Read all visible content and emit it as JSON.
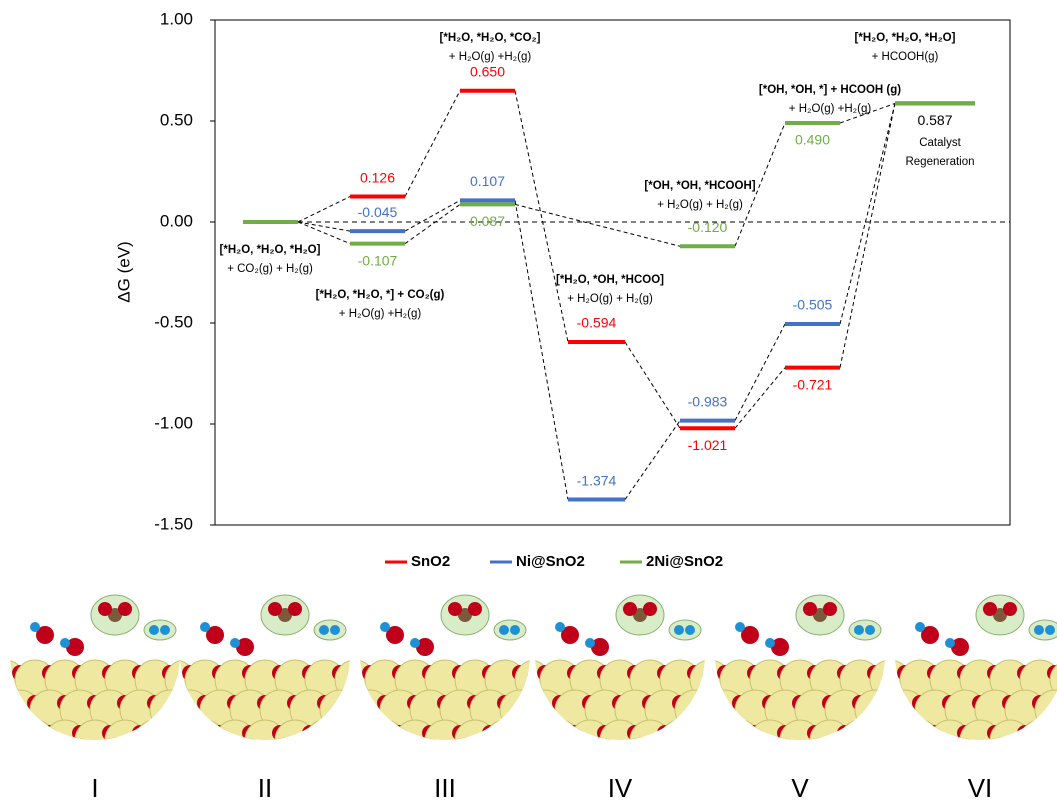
{
  "chart_data": {
    "type": "energy-profile",
    "y_label": "ΔG (eV)",
    "ylim": [
      -1.5,
      1.0
    ],
    "yticks": [
      {
        "value": 1.0,
        "label": "1.00"
      },
      {
        "value": 0.5,
        "label": "0.50"
      },
      {
        "value": 0,
        "label": "0.00"
      },
      {
        "value": -0.5,
        "label": "-0.50"
      },
      {
        "value": -1.0,
        "label": "-1.00"
      },
      {
        "value": -1.5,
        "label": "-1.50"
      }
    ],
    "categories": [
      null,
      null,
      null,
      null,
      null,
      null,
      null
    ],
    "series": [
      {
        "name": "SnO2",
        "color": "#ff0000",
        "values": [
          0,
          0.126,
          0.65,
          -0.594,
          -1.021,
          -0.721,
          0.587
        ],
        "value_labels": [
          null,
          "0.126",
          "0.650",
          "-0.594",
          "-1.021",
          "-0.721",
          null
        ]
      },
      {
        "name": "Ni@SnO2",
        "color": "#4472c4",
        "values": [
          0,
          -0.045,
          0.107,
          -1.374,
          -0.983,
          -0.505,
          0.587
        ],
        "value_labels": [
          null,
          "-0.045",
          "0.107",
          "-1.374",
          "-0.983",
          "-0.505",
          null
        ]
      },
      {
        "name": "2Ni@SnO2",
        "color": "#70ad47",
        "values": [
          0,
          -0.107,
          0.087,
          null,
          -0.12,
          0.49,
          0.587
        ],
        "value_labels": [
          null,
          "-0.107",
          "0.087",
          null,
          "-0.120",
          "0.490",
          "0.587"
        ]
      }
    ],
    "annotations": [
      [
        "[*H₂O, *H₂O, *H₂O]",
        "+ CO₂(g) + H₂(g)"
      ],
      [
        "[*H₂O, *H₂O, *] + CO₂(g)",
        "+ H₂O(g) +H₂(g)"
      ],
      [
        "[*H₂O, *H₂O, *CO₂]",
        "+ H₂O(g)  +H₂(g)"
      ],
      [
        "[*H₂O, *OH, *HCOO]",
        "+ H₂O(g) + H₂(g)"
      ],
      [
        "[*OH, *OH, *HCOOH]",
        "+ H₂O(g)  + H₂(g)"
      ],
      [
        "[*OH, *OH, *] + HCOOH (g)",
        "+ H₂O(g)  +H₂(g)"
      ],
      [
        "[*H₂O, *H₂O, *H₂O]",
        "+ HCOOH(g)"
      ],
      [
        "Catalyst",
        "Regeneration"
      ]
    ],
    "structure_labels": [
      "I",
      "II",
      "III",
      "IV",
      "V",
      "VI"
    ]
  }
}
